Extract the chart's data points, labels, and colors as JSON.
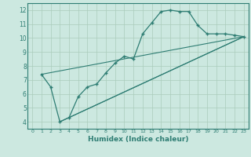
{
  "xlabel": "Humidex (Indice chaleur)",
  "background_color": "#cce8e0",
  "grid_color": "#aaccbb",
  "line_color": "#2e7d73",
  "xlim": [
    -0.5,
    23.5
  ],
  "ylim": [
    3.5,
    12.5
  ],
  "xticks": [
    0,
    1,
    2,
    3,
    4,
    5,
    6,
    7,
    8,
    9,
    10,
    11,
    12,
    13,
    14,
    15,
    16,
    17,
    18,
    19,
    20,
    21,
    22,
    23
  ],
  "yticks": [
    4,
    5,
    6,
    7,
    8,
    9,
    10,
    11,
    12
  ],
  "line1_x": [
    1,
    2,
    3,
    4,
    5,
    6,
    7,
    8,
    9,
    10,
    11,
    12,
    13,
    14,
    15,
    16,
    17,
    18,
    19,
    20,
    21,
    22,
    23
  ],
  "line1_y": [
    7.4,
    6.5,
    4.0,
    4.3,
    5.8,
    6.5,
    6.7,
    7.5,
    8.2,
    8.7,
    8.5,
    10.3,
    11.1,
    11.9,
    12.0,
    11.9,
    11.9,
    10.9,
    10.3,
    10.3,
    10.3,
    10.2,
    10.1
  ],
  "line2_x": [
    1,
    23
  ],
  "line2_y": [
    7.4,
    10.1
  ],
  "line3_x": [
    3,
    23
  ],
  "line3_y": [
    4.0,
    10.1
  ],
  "line4_x": [
    4,
    23
  ],
  "line4_y": [
    4.3,
    10.1
  ]
}
